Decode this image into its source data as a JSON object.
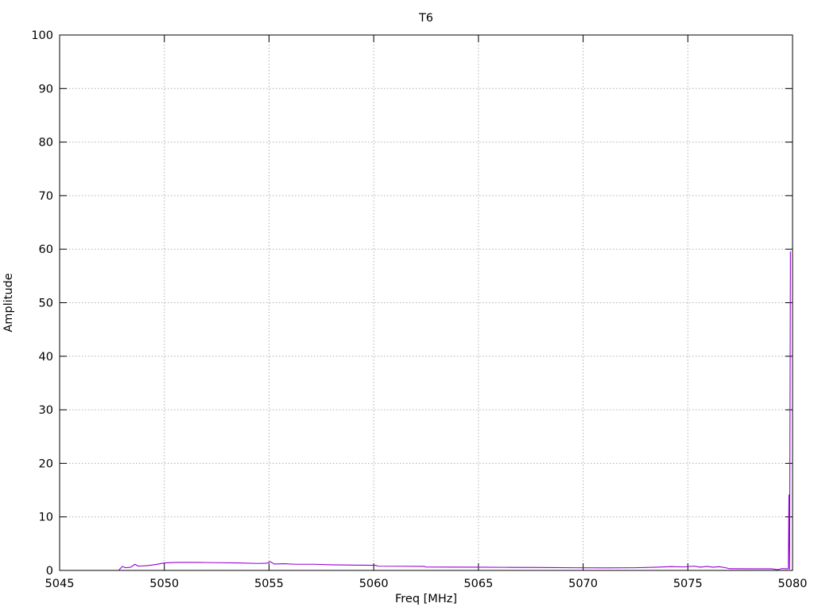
{
  "chart_data": {
    "type": "line",
    "title": "T6",
    "xlabel": "Freq [MHz]",
    "ylabel": "Amplitude",
    "xlim": [
      5045,
      5080
    ],
    "ylim": [
      0,
      100
    ],
    "xticks": [
      5045,
      5050,
      5055,
      5060,
      5065,
      5070,
      5075,
      5080
    ],
    "yticks": [
      0,
      10,
      20,
      30,
      40,
      50,
      60,
      70,
      80,
      90,
      100
    ],
    "grid": {
      "style": "dotted",
      "color": "#b0b0b0"
    },
    "legend_position": "none",
    "axis_color": "#000000",
    "background_color": "#ffffff",
    "series": [
      {
        "name": "T6",
        "color": "#9400d3",
        "points": [
          [
            5047.85,
            0.15
          ],
          [
            5048.0,
            0.75
          ],
          [
            5048.15,
            0.5
          ],
          [
            5048.4,
            0.6
          ],
          [
            5048.6,
            1.15
          ],
          [
            5048.75,
            0.8
          ],
          [
            5049.2,
            0.9
          ],
          [
            5049.6,
            1.1
          ],
          [
            5050.0,
            1.4
          ],
          [
            5050.6,
            1.5
          ],
          [
            5051.5,
            1.5
          ],
          [
            5052.5,
            1.45
          ],
          [
            5053.5,
            1.4
          ],
          [
            5054.5,
            1.3
          ],
          [
            5054.9,
            1.35
          ],
          [
            5055.05,
            1.65
          ],
          [
            5055.25,
            1.2
          ],
          [
            5055.7,
            1.25
          ],
          [
            5056.3,
            1.15
          ],
          [
            5057.2,
            1.15
          ],
          [
            5058.0,
            1.05
          ],
          [
            5059.0,
            1.0
          ],
          [
            5060.1,
            0.95
          ],
          [
            5060.2,
            0.8
          ],
          [
            5061.5,
            0.78
          ],
          [
            5062.4,
            0.75
          ],
          [
            5062.5,
            0.63
          ],
          [
            5063.5,
            0.62
          ],
          [
            5065.0,
            0.6
          ],
          [
            5066.5,
            0.57
          ],
          [
            5068.0,
            0.55
          ],
          [
            5069.5,
            0.5
          ],
          [
            5071.0,
            0.48
          ],
          [
            5072.5,
            0.5
          ],
          [
            5073.5,
            0.6
          ],
          [
            5074.2,
            0.72
          ],
          [
            5074.8,
            0.65
          ],
          [
            5075.3,
            0.8
          ],
          [
            5075.6,
            0.6
          ],
          [
            5075.9,
            0.75
          ],
          [
            5076.2,
            0.6
          ],
          [
            5076.5,
            0.7
          ],
          [
            5076.8,
            0.5
          ],
          [
            5077.0,
            0.32
          ],
          [
            5078.0,
            0.3
          ],
          [
            5079.0,
            0.3
          ],
          [
            5079.3,
            0.15
          ],
          [
            5079.5,
            0.35
          ],
          [
            5079.7,
            0.3
          ],
          [
            5079.8,
            0.3
          ],
          [
            5079.83,
            14.1
          ],
          [
            5079.86,
            0.25
          ],
          [
            5079.9,
            59.5
          ]
        ]
      }
    ]
  }
}
